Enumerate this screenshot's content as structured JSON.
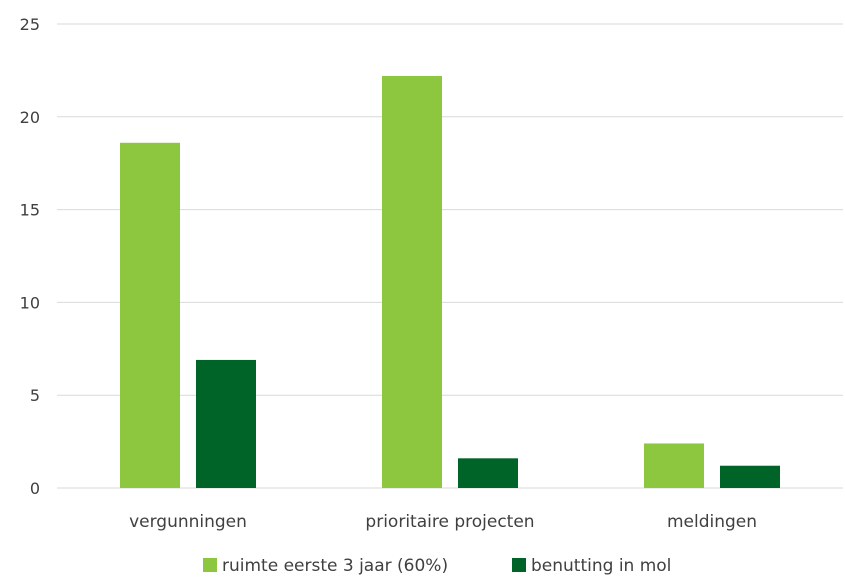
{
  "chart_data": {
    "type": "bar",
    "title": "",
    "xlabel": "",
    "ylabel": "",
    "categories": [
      "vergunningen",
      "prioritaire projecten",
      "meldingen"
    ],
    "series": [
      {
        "name": "ruimte eerste 3 jaar (60%)",
        "color": "#8dc63f",
        "values": [
          18.6,
          22.2,
          2.4
        ]
      },
      {
        "name": "benutting in mol",
        "color": "#006428",
        "values": [
          6.9,
          1.6,
          1.2
        ]
      }
    ],
    "ylim": [
      0,
      25
    ],
    "yticks": [
      0,
      5,
      10,
      15,
      20,
      25
    ],
    "ytick_labels": [
      "0",
      "5",
      "10",
      "15",
      "20",
      "25"
    ],
    "grid": true,
    "legend_position": "bottom"
  }
}
